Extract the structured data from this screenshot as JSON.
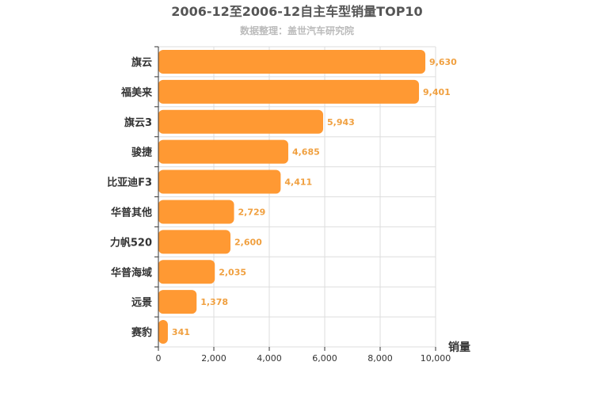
{
  "chart_data": {
    "type": "bar",
    "orientation": "horizontal",
    "title": "2006-12至2006-12自主车型销量TOP10",
    "subtitle": "数据整理：盖世汽车研究院",
    "xlabel": "销量",
    "categories": [
      "旗云",
      "福美来",
      "旗云3",
      "骏捷",
      "比亚迪F3",
      "华普其他",
      "力帆520",
      "华普海域",
      "远景",
      "赛豹"
    ],
    "values": [
      9630,
      9401,
      5943,
      4685,
      4411,
      2729,
      2600,
      2035,
      1378,
      341
    ],
    "value_labels": [
      "9,630",
      "9,401",
      "5,943",
      "4,685",
      "4,411",
      "2,729",
      "2,600",
      "2,035",
      "1,378",
      "341"
    ],
    "xlim": [
      0,
      10000
    ],
    "xticks": [
      0,
      2000,
      4000,
      6000,
      8000,
      10000
    ],
    "xtick_labels": [
      "0",
      "2,000",
      "4,000",
      "6,000",
      "8,000",
      "10,000"
    ],
    "grid": true,
    "bar_color": "#ff9933",
    "value_label_color": "#f0a040"
  }
}
